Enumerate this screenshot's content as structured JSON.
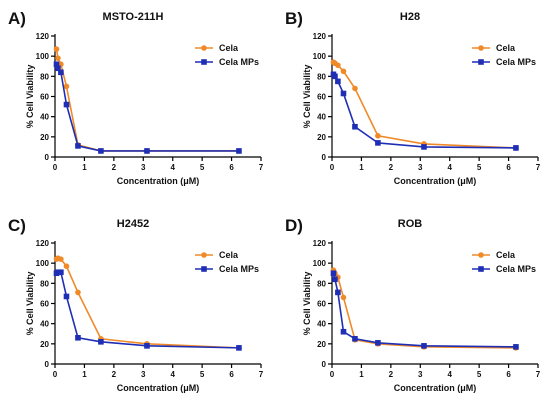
{
  "colors": {
    "Cela": "#F08A28",
    "Cela MPs": "#1F2FB5",
    "axis": "#000000"
  },
  "legend": [
    "Cela",
    "Cela MPs"
  ],
  "chart_data": [
    {
      "type": "line",
      "panel": "A)",
      "title": "MSTO-211H",
      "xlabel": "Concentration (μM)",
      "ylabel": "% Cell Viability",
      "xlim": [
        0,
        7
      ],
      "ylim": [
        0,
        120
      ],
      "xticks": [
        0,
        1,
        2,
        3,
        4,
        5,
        6,
        7
      ],
      "yticks": [
        0,
        20,
        40,
        60,
        80,
        100,
        120
      ],
      "legend_position": "top-right",
      "series": [
        {
          "name": "Cela",
          "marker": "circle",
          "x": [
            0.05,
            0.1,
            0.2,
            0.39,
            0.78,
            1.56,
            3.125,
            6.25
          ],
          "y": [
            107,
            98,
            92,
            70,
            12,
            6,
            6,
            6
          ]
        },
        {
          "name": "Cela MPs",
          "marker": "square",
          "x": [
            0.05,
            0.1,
            0.2,
            0.39,
            0.78,
            1.56,
            3.125,
            6.25
          ],
          "y": [
            92,
            88,
            84,
            52,
            11,
            6,
            6,
            6
          ]
        }
      ]
    },
    {
      "type": "line",
      "panel": "B)",
      "title": "H28",
      "xlabel": "Concentration (μM)",
      "ylabel": "% Cell Viability",
      "xlim": [
        0,
        7
      ],
      "ylim": [
        0,
        120
      ],
      "xticks": [
        0,
        1,
        2,
        3,
        4,
        5,
        6,
        7
      ],
      "yticks": [
        0,
        20,
        40,
        60,
        80,
        100,
        120
      ],
      "legend_position": "top-right",
      "series": [
        {
          "name": "Cela",
          "marker": "circle",
          "x": [
            0.05,
            0.1,
            0.2,
            0.39,
            0.78,
            1.56,
            3.125,
            6.25
          ],
          "y": [
            94,
            93,
            91,
            85,
            68,
            21,
            13,
            9
          ]
        },
        {
          "name": "Cela MPs",
          "marker": "square",
          "x": [
            0.05,
            0.1,
            0.2,
            0.39,
            0.78,
            1.56,
            3.125,
            6.25
          ],
          "y": [
            82,
            80,
            75,
            63,
            30,
            14,
            10,
            9
          ]
        }
      ]
    },
    {
      "type": "line",
      "panel": "C)",
      "title": "H2452",
      "xlabel": "Concentration (μM)",
      "ylabel": "% Cell Viability",
      "xlim": [
        0,
        7
      ],
      "ylim": [
        0,
        120
      ],
      "xticks": [
        0,
        1,
        2,
        3,
        4,
        5,
        6,
        7
      ],
      "yticks": [
        0,
        20,
        40,
        60,
        80,
        100,
        120
      ],
      "legend_position": "top-right",
      "series": [
        {
          "name": "Cela",
          "marker": "circle",
          "x": [
            0.05,
            0.1,
            0.2,
            0.39,
            0.78,
            1.56,
            3.125,
            6.25
          ],
          "y": [
            104,
            105,
            104,
            97,
            71,
            25,
            20,
            16
          ]
        },
        {
          "name": "Cela MPs",
          "marker": "square",
          "x": [
            0.05,
            0.1,
            0.2,
            0.39,
            0.78,
            1.56,
            3.125,
            6.25
          ],
          "y": [
            90,
            91,
            91,
            67,
            26,
            22,
            18,
            16
          ]
        }
      ]
    },
    {
      "type": "line",
      "panel": "D)",
      "title": "ROB",
      "xlabel": "Concentration (μM)",
      "ylabel": "% Cell Viability",
      "xlim": [
        0,
        7
      ],
      "ylim": [
        0,
        120
      ],
      "xticks": [
        0,
        1,
        2,
        3,
        4,
        5,
        6,
        7
      ],
      "yticks": [
        0,
        20,
        40,
        60,
        80,
        100,
        120
      ],
      "legend_position": "top-right",
      "series": [
        {
          "name": "Cela",
          "marker": "circle",
          "x": [
            0.05,
            0.1,
            0.2,
            0.39,
            0.78,
            1.56,
            3.125,
            6.25
          ],
          "y": [
            93,
            90,
            86,
            66,
            24,
            20,
            17,
            16
          ]
        },
        {
          "name": "Cela MPs",
          "marker": "square",
          "x": [
            0.05,
            0.1,
            0.2,
            0.39,
            0.78,
            1.56,
            3.125,
            6.25
          ],
          "y": [
            90,
            84,
            71,
            32,
            25,
            21,
            18,
            17
          ]
        }
      ]
    }
  ]
}
